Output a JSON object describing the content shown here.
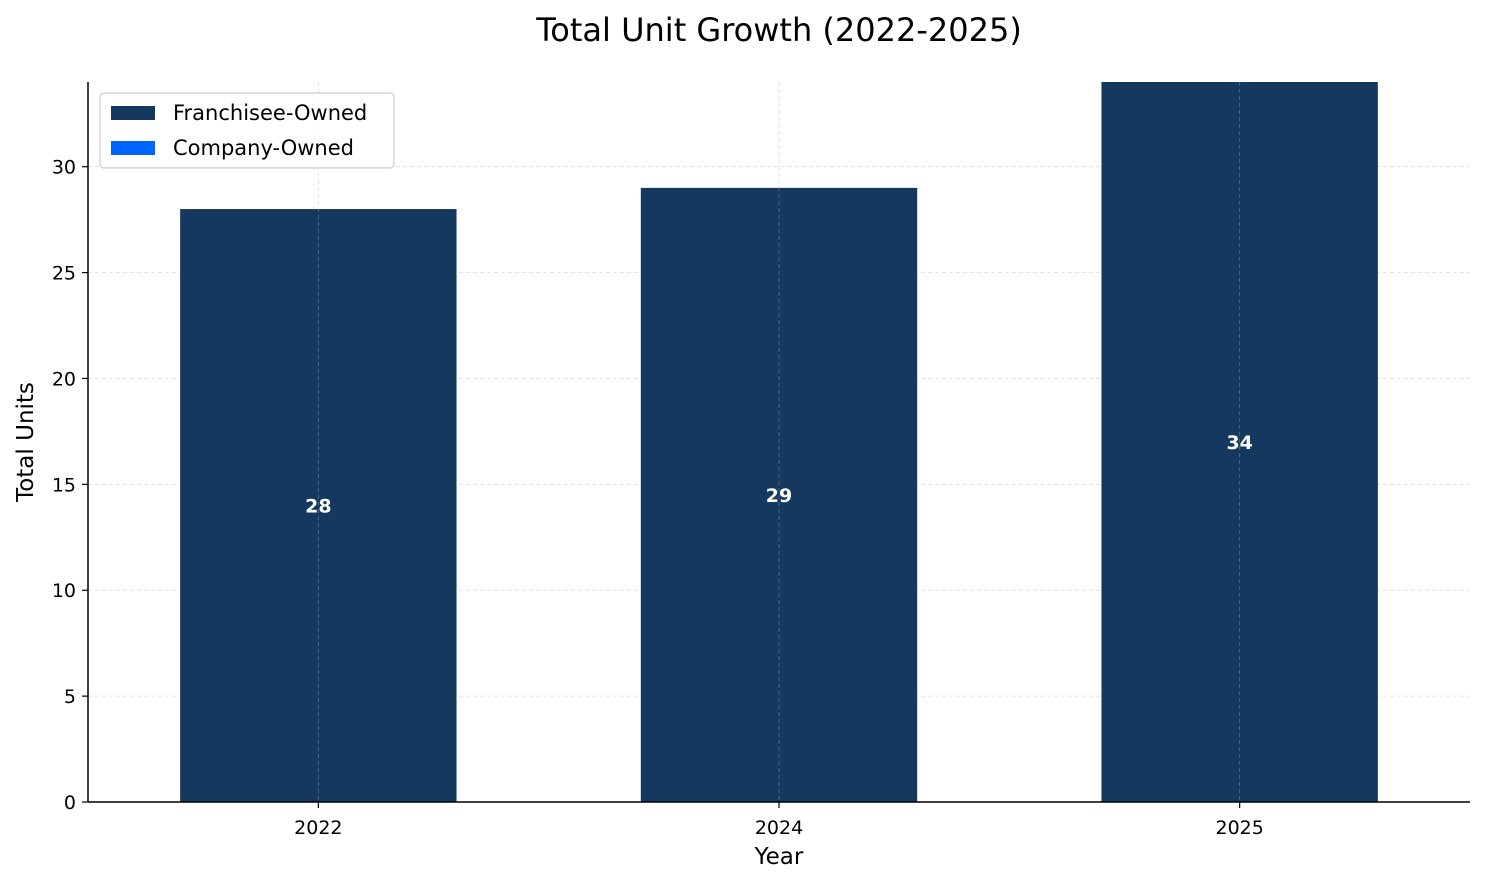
{
  "chart_data": {
    "type": "bar",
    "stacked": true,
    "title": "Total Unit Growth (2022-2025)",
    "xlabel": "Year",
    "ylabel": "Total Units",
    "categories": [
      "2022",
      "2024",
      "2025"
    ],
    "series": [
      {
        "name": "Franchisee-Owned",
        "values": [
          28,
          29,
          34
        ],
        "color": "#15385f"
      },
      {
        "name": "Company-Owned",
        "values": [
          0,
          0,
          0
        ],
        "color": "#0066ff"
      }
    ],
    "totals": [
      "28",
      "29",
      "34"
    ],
    "ylim": [
      0,
      34
    ],
    "yticks": [
      "0",
      "5",
      "10",
      "15",
      "20",
      "25",
      "30"
    ],
    "grid": true,
    "legend_position": "top-left"
  }
}
